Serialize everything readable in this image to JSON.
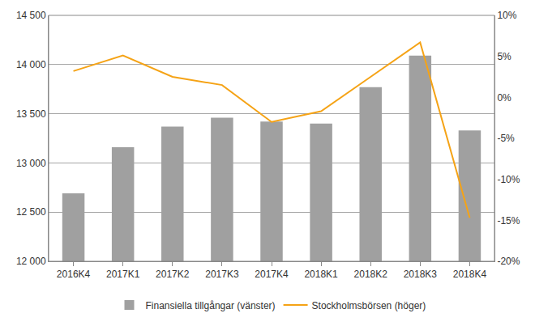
{
  "chart_data": {
    "type": "bar",
    "categories": [
      "2016K4",
      "2017K1",
      "2017K2",
      "2017K3",
      "2017K4",
      "2018K1",
      "2018K2",
      "2018K3",
      "2018K4"
    ],
    "series": [
      {
        "name": "Finansiella tillgångar (vänster)",
        "type": "bar",
        "color": "#a0a0a0",
        "values": [
          12690,
          13160,
          13370,
          13460,
          13420,
          13400,
          13770,
          14090,
          13330
        ]
      },
      {
        "name": "Stockholmsbörsen (höger)",
        "type": "line",
        "axis": "y2",
        "color": "#f5a316",
        "line_style": "solid",
        "values": [
          3.2,
          5.1,
          2.5,
          1.5,
          -3.0,
          -1.7,
          2.5,
          6.7,
          -14.7
        ]
      }
    ],
    "ylim": [
      12000,
      14500
    ],
    "yticks": [
      {
        "value": 12000,
        "label": "12 000"
      },
      {
        "value": 12500,
        "label": "12 500"
      },
      {
        "value": 13000,
        "label": "13 000"
      },
      {
        "value": 13500,
        "label": "13 500"
      },
      {
        "value": 14000,
        "label": "14 000"
      },
      {
        "value": 14500,
        "label": "14 500"
      }
    ],
    "y2lim": [
      -20,
      10
    ],
    "y2ticks": [
      {
        "value": -20,
        "label": "-20%"
      },
      {
        "value": -15,
        "label": "-15%"
      },
      {
        "value": -10,
        "label": "-10%"
      },
      {
        "value": -5,
        "label": "-5%"
      },
      {
        "value": 0,
        "label": "0%"
      },
      {
        "value": 5,
        "label": "5%"
      },
      {
        "value": 10,
        "label": "10%"
      }
    ],
    "grid": true,
    "legend": "bottom"
  }
}
